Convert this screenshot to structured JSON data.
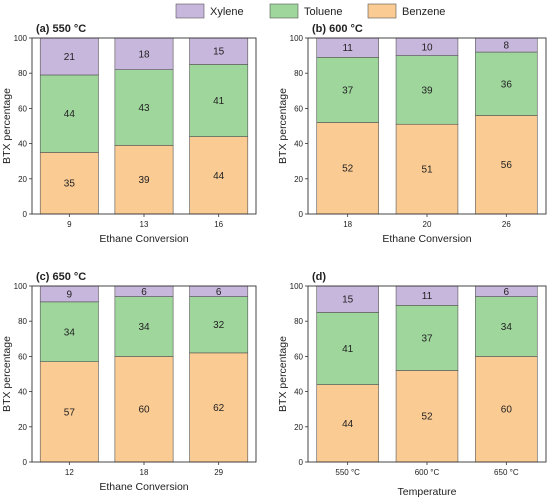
{
  "legend": {
    "items": [
      {
        "name": "Xylene",
        "color": "#c8b7dc"
      },
      {
        "name": "Toluene",
        "color": "#9fd69c"
      },
      {
        "name": "Benzene",
        "color": "#fbcb94"
      }
    ],
    "placement": "top-center"
  },
  "colors": {
    "xylene": "#c8b7dc",
    "toluene": "#9fd69c",
    "benzene": "#fbcb94",
    "edge": "#555555"
  },
  "chart_data": [
    {
      "type": "bar",
      "stacked": true,
      "title": "(a) 550 °C",
      "xlabel": "Ethane Conversion",
      "ylabel": "BTX percentage",
      "categories": [
        "9",
        "13",
        "16"
      ],
      "ylim": [
        0,
        100
      ],
      "yticks": [
        0,
        20,
        40,
        60,
        80,
        100
      ],
      "series": [
        {
          "name": "Benzene",
          "values": [
            35,
            39,
            44
          ]
        },
        {
          "name": "Toluene",
          "values": [
            44,
            43,
            41
          ]
        },
        {
          "name": "Xylene",
          "values": [
            21,
            18,
            15
          ]
        }
      ]
    },
    {
      "type": "bar",
      "stacked": true,
      "title": "(b) 600 °C",
      "xlabel": "Ethane Conversion",
      "ylabel": "BTX percentage",
      "categories": [
        "18",
        "20",
        "26"
      ],
      "ylim": [
        0,
        100
      ],
      "yticks": [
        0,
        20,
        40,
        60,
        80,
        100
      ],
      "series": [
        {
          "name": "Benzene",
          "values": [
            52,
            51,
            56
          ]
        },
        {
          "name": "Toluene",
          "values": [
            37,
            39,
            36
          ]
        },
        {
          "name": "Xylene",
          "values": [
            11,
            10,
            8
          ]
        }
      ]
    },
    {
      "type": "bar",
      "stacked": true,
      "title": "(c) 650 °C",
      "xlabel": "Ethane Conversion",
      "ylabel": "BTX percentage",
      "categories": [
        "12",
        "18",
        "29"
      ],
      "ylim": [
        0,
        100
      ],
      "yticks": [
        0,
        20,
        40,
        60,
        80,
        100
      ],
      "series": [
        {
          "name": "Benzene",
          "values": [
            57,
            60,
            62
          ]
        },
        {
          "name": "Toluene",
          "values": [
            34,
            34,
            32
          ]
        },
        {
          "name": "Xylene",
          "values": [
            9,
            6,
            6
          ]
        }
      ]
    },
    {
      "type": "bar",
      "stacked": true,
      "title": "(d)",
      "xlabel": "Temperature",
      "ylabel": "BTX percentage",
      "categories": [
        "550 °C",
        "600 °C",
        "650 °C"
      ],
      "ylim": [
        0,
        100
      ],
      "yticks": [
        0,
        20,
        40,
        60,
        80,
        100
      ],
      "series": [
        {
          "name": "Benzene",
          "values": [
            44,
            52,
            60
          ]
        },
        {
          "name": "Toluene",
          "values": [
            41,
            37,
            34
          ]
        },
        {
          "name": "Xylene",
          "values": [
            15,
            11,
            6
          ]
        }
      ]
    }
  ]
}
